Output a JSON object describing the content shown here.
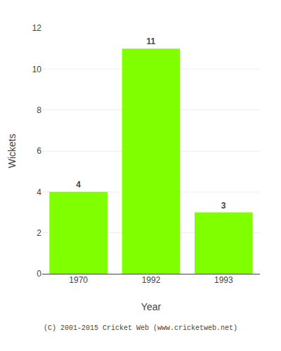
{
  "chart_data": {
    "type": "bar",
    "categories": [
      "1970",
      "1992",
      "1993"
    ],
    "values": [
      4,
      11,
      3
    ],
    "color": "#7FFF00",
    "xlabel": "Year",
    "ylabel": "Wickets",
    "ylim": [
      0,
      12
    ],
    "yticks": [
      0,
      2,
      4,
      6,
      8,
      10,
      12
    ],
    "grid": true,
    "data_labels": true,
    "annotations": [
      "(C) 2001-2015 Cricket Web (www.cricketweb.net)"
    ]
  }
}
